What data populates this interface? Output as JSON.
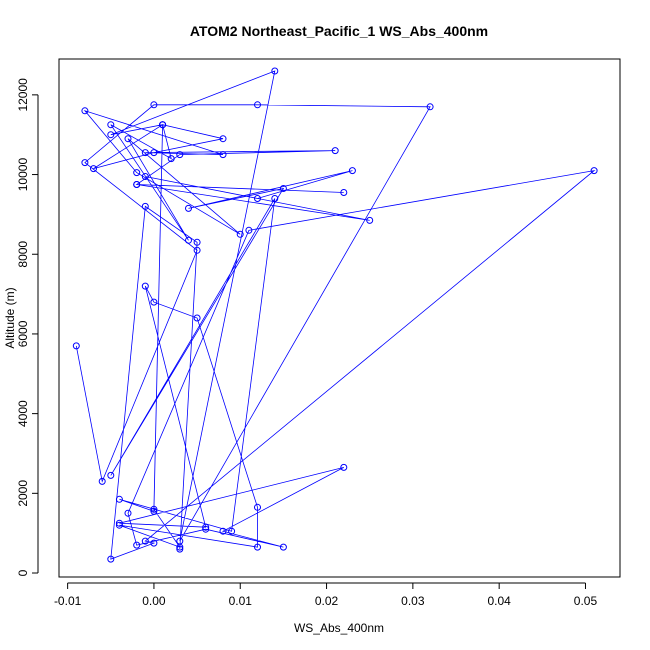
{
  "chart_data": {
    "type": "line",
    "title": "ATOM2 Northeast_Pacific_1 WS_Abs_400nm",
    "xlabel": "WS_Abs_400nm",
    "ylabel": "Altitude (m)",
    "xlim": [
      -0.011,
      0.054
    ],
    "ylim": [
      -100,
      12900
    ],
    "xticks": [
      -0.01,
      0.0,
      0.01,
      0.02,
      0.03,
      0.04,
      0.05
    ],
    "xtick_labels": [
      "-0.01",
      "0.00",
      "0.01",
      "0.02",
      "0.03",
      "0.04",
      "0.05"
    ],
    "yticks": [
      0,
      2000,
      4000,
      6000,
      8000,
      10000,
      12000
    ],
    "ytick_labels": [
      "0",
      "2000",
      "4000",
      "6000",
      "8000",
      "10000",
      "12000"
    ],
    "grid": false,
    "legend": "none",
    "colors": {
      "series": "#0000ff",
      "axis": "#000000",
      "background": "#ffffff"
    },
    "series": [
      {
        "x": [
          -0.009,
          -0.006,
          0.005,
          -0.008,
          0.0,
          0.012,
          0.032,
          0.003,
          0.014,
          -0.005,
          0.001,
          0.008,
          0.0,
          -0.007,
          0.001,
          0.002,
          -0.005,
          0.004,
          -0.003,
          0.01,
          -0.002,
          -0.008,
          0.008,
          -0.001,
          0.021,
          0.003,
          -0.002,
          0.022,
          -0.002,
          0.025,
          -0.001,
          0.012,
          0.023,
          0.004,
          0.015,
          -0.005,
          0.014,
          0.009,
          -0.004,
          0.0,
          0.001,
          0.0,
          0.003,
          -0.004,
          0.012,
          0.012,
          0.005,
          0.0,
          -0.001,
          0.006,
          -0.004,
          0.022,
          0.008,
          0.015,
          0.006,
          -0.002,
          -0.003,
          0.011,
          0.051,
          -0.001,
          0.0,
          -0.005,
          -0.001,
          0.005,
          0.003
        ],
        "y": [
          5700,
          2300,
          8100,
          10300,
          11750,
          11750,
          11700,
          800,
          12600,
          11000,
          11250,
          10900,
          10550,
          10150,
          11250,
          10400,
          11250,
          8350,
          10900,
          8500,
          10050,
          11600,
          10500,
          10550,
          10600,
          10500,
          9750,
          9550,
          9750,
          8850,
          9950,
          9400,
          10100,
          9150,
          9650,
          2450,
          9400,
          1050,
          1850,
          1550,
          11250,
          1600,
          650,
          1200,
          650,
          1650,
          6400,
          6800,
          7200,
          1150,
          1250,
          2650,
          1050,
          650,
          1100,
          700,
          1500,
          8600,
          10100,
          800,
          750,
          350,
          9200,
          8300,
          600
        ]
      }
    ]
  }
}
